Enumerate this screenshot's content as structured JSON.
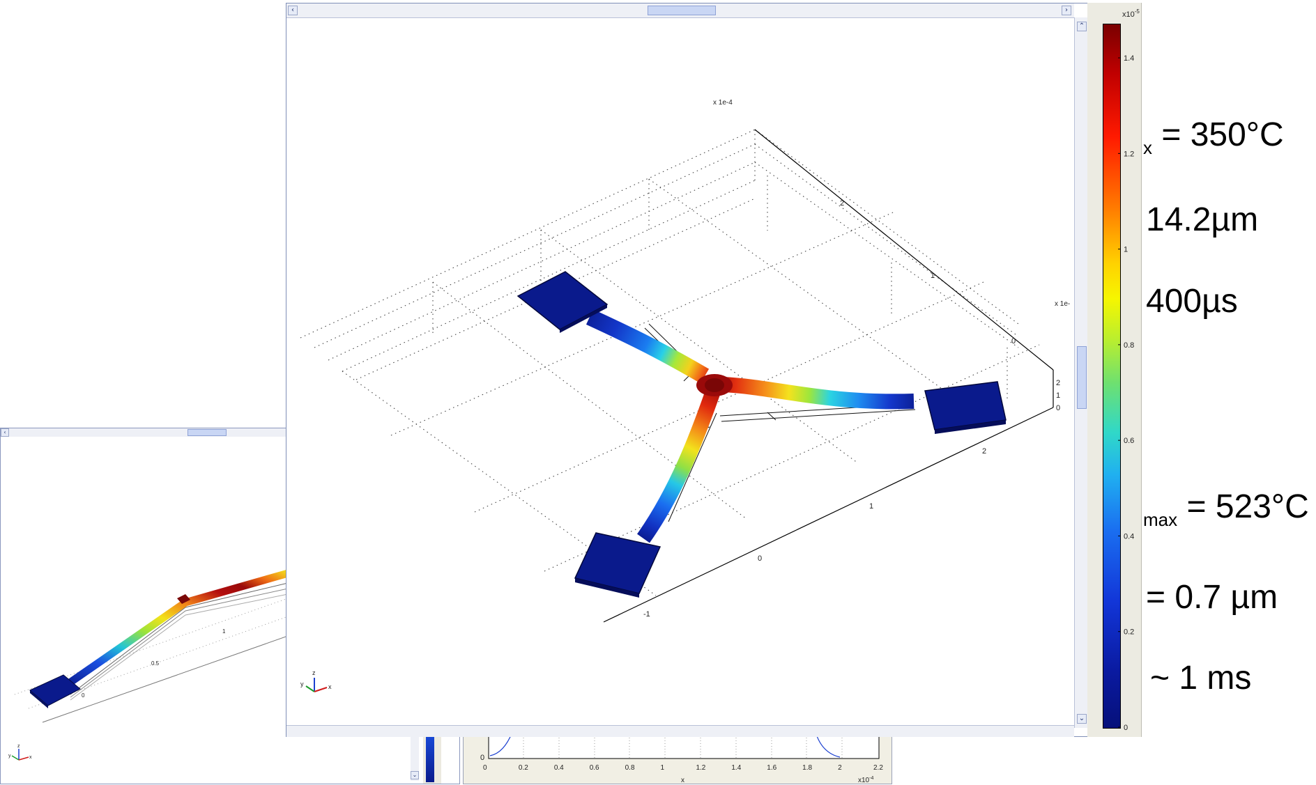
{
  "left_window": {
    "ticks": [
      "0",
      "0.5",
      "1"
    ],
    "axis_labels": [
      "z",
      "y",
      "x"
    ]
  },
  "main_window": {
    "axis_exp_top": "x 1e-4",
    "axis_exp_right": "x 1e-",
    "ticks_depth": [
      "2",
      "1",
      "0"
    ],
    "ticks_front": [
      "-1",
      "0",
      "1",
      "2"
    ],
    "ticks_vert": [
      "2",
      "1",
      "0"
    ],
    "triad": [
      "z",
      "y",
      "x"
    ]
  },
  "colorbar": {
    "exponent": "x10",
    "exponent_power": "-5",
    "ticks": [
      "1.4",
      "1.2",
      "1",
      "0.8",
      "0.6",
      "0.4",
      "0.2",
      "0"
    ],
    "colormap": "jet"
  },
  "plot_window": {
    "x_ticks": [
      "0",
      "0.2",
      "0.4",
      "0.6",
      "0.8",
      "1",
      "1.2",
      "1.4",
      "1.6",
      "1.8",
      "2",
      "2.2"
    ],
    "y_tick": "0",
    "x_label": "x",
    "x_exponent": "x10",
    "x_exponent_power": "-4"
  },
  "side_text": {
    "line1": "x",
    "line1_value": " = 350°C",
    "line2": "14.2µm",
    "line3": "400µs",
    "line4_sub": "max",
    "line4_value": " = 523°C",
    "line5": "= 0.7 µm",
    "line6": "~ 1 ms"
  },
  "colors": {
    "pad": "#0a1a8c",
    "window_border": "#7f8fb7",
    "scroll_bg": "#eef0f6"
  }
}
